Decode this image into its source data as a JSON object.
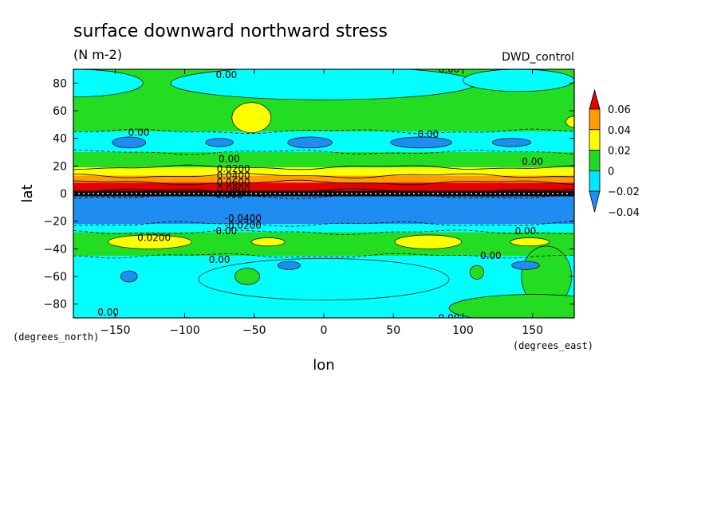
{
  "chart_data": {
    "type": "heatmap",
    "title": "surface downward northward stress",
    "units": "(N m-2)",
    "dataset": "DWD_control",
    "xlabel": "lon",
    "ylabel": "lat",
    "x_units_label": "(degrees_east)",
    "y_units_label": "(degrees_north)",
    "xlim": [
      -180,
      180
    ],
    "ylim": [
      -90,
      90
    ],
    "x_ticks": [
      -150,
      -100,
      -50,
      0,
      50,
      100,
      150
    ],
    "y_ticks": [
      -80,
      -60,
      -40,
      -20,
      0,
      20,
      40,
      60,
      80
    ],
    "x_tick_labels": [
      "−150",
      "−100",
      "−50",
      "0",
      "50",
      "100",
      "150"
    ],
    "y_tick_labels": [
      "−80",
      "−60",
      "−40",
      "−20",
      "0",
      "20",
      "40",
      "60",
      "80"
    ],
    "colorbar": {
      "levels": [
        -0.04,
        -0.02,
        0,
        0.02,
        0.04,
        0.06
      ],
      "level_labels": [
        "−0.04",
        "−0.02",
        "0",
        "0.02",
        "0.04",
        "0.06"
      ],
      "colors": [
        "#1e8cf0",
        "#00e6ff",
        "#20d820",
        "#ffff00",
        "#ff9c00",
        "#e60000"
      ],
      "extend": "both"
    },
    "zonal_bands": [
      {
        "lat_min": -90,
        "lat_max": -45,
        "color": "#00ffff"
      },
      {
        "lat_min": -45,
        "lat_max": -28,
        "color": "#22dd22"
      },
      {
        "lat_min": -28,
        "lat_max": -22,
        "color": "#00ffff"
      },
      {
        "lat_min": -22,
        "lat_max": -2,
        "color": "#1e8cf0"
      },
      {
        "lat_min": -2,
        "lat_max": 2,
        "color": "#000000"
      },
      {
        "lat_min": 2,
        "lat_max": 8,
        "color": "#e60000"
      },
      {
        "lat_min": 8,
        "lat_max": 13,
        "color": "#ff9c00"
      },
      {
        "lat_min": 13,
        "lat_max": 19,
        "color": "#ffff00"
      },
      {
        "lat_min": 19,
        "lat_max": 30,
        "color": "#22dd22"
      },
      {
        "lat_min": 30,
        "lat_max": 45,
        "color": "#00ffff"
      },
      {
        "lat_min": 45,
        "lat_max": 90,
        "color": "#22dd22"
      }
    ],
    "features": [
      {
        "lon": -180,
        "lat": 80,
        "rx": 50,
        "ry": 10,
        "color": "#00ffff"
      },
      {
        "lon": 0,
        "lat": 80,
        "rx": 110,
        "ry": 12,
        "color": "#00ffff"
      },
      {
        "lon": 140,
        "lat": 82,
        "rx": 40,
        "ry": 8,
        "color": "#00ffff"
      },
      {
        "lon": -52,
        "lat": 55,
        "rx": 14,
        "ry": 11,
        "color": "#ffff00"
      },
      {
        "lon": 180,
        "lat": 52,
        "rx": 6,
        "ry": 4,
        "color": "#ffff00"
      },
      {
        "lon": -140,
        "lat": 37,
        "rx": 12,
        "ry": 4,
        "color": "#1e8cf0"
      },
      {
        "lon": -75,
        "lat": 37,
        "rx": 10,
        "ry": 3,
        "color": "#1e8cf0"
      },
      {
        "lon": -10,
        "lat": 37,
        "rx": 16,
        "ry": 4,
        "color": "#1e8cf0"
      },
      {
        "lon": 70,
        "lat": 37,
        "rx": 22,
        "ry": 4,
        "color": "#1e8cf0"
      },
      {
        "lon": 135,
        "lat": 37,
        "rx": 14,
        "ry": 3,
        "color": "#1e8cf0"
      },
      {
        "lon": -125,
        "lat": -35,
        "rx": 30,
        "ry": 5,
        "color": "#ffff00"
      },
      {
        "lon": -40,
        "lat": -35,
        "rx": 12,
        "ry": 3,
        "color": "#ffff00"
      },
      {
        "lon": 75,
        "lat": -35,
        "rx": 24,
        "ry": 5,
        "color": "#ffff00"
      },
      {
        "lon": 148,
        "lat": -35,
        "rx": 14,
        "ry": 3,
        "color": "#ffff00"
      },
      {
        "lon": 0,
        "lat": -62,
        "rx": 90,
        "ry": 15,
        "color": "#00ffff"
      },
      {
        "lon": -55,
        "lat": -60,
        "rx": 9,
        "ry": 6,
        "color": "#22dd22"
      },
      {
        "lon": 110,
        "lat": -57,
        "rx": 5,
        "ry": 5,
        "color": "#22dd22"
      },
      {
        "lon": 160,
        "lat": -60,
        "rx": 18,
        "ry": 22,
        "color": "#22dd22"
      },
      {
        "lon": 150,
        "lat": -83,
        "rx": 60,
        "ry": 10,
        "color": "#22dd22"
      },
      {
        "lon": -140,
        "lat": -60,
        "rx": 6,
        "ry": 4,
        "color": "#1e8cf0"
      },
      {
        "lon": -25,
        "lat": -52,
        "rx": 8,
        "ry": 3,
        "color": "#1e8cf0"
      },
      {
        "lon": 145,
        "lat": -52,
        "rx": 10,
        "ry": 3,
        "color": "#1e8cf0"
      }
    ],
    "contour_labels": [
      {
        "lon": -70,
        "lat": 86,
        "text": "0.00"
      },
      {
        "lon": 90,
        "lat": 90,
        "text": "0.00"
      },
      {
        "lon": -133,
        "lat": 44,
        "text": "0.00"
      },
      {
        "lon": 75,
        "lat": 43,
        "text": "0.00"
      },
      {
        "lon": 150,
        "lat": 23,
        "text": "0.00"
      },
      {
        "lon": -68,
        "lat": 25,
        "text": "0.00"
      },
      {
        "lon": -65,
        "lat": 18,
        "text": "0.0200"
      },
      {
        "lon": -65,
        "lat": 13,
        "text": "0.0400"
      },
      {
        "lon": -65,
        "lat": 8,
        "text": "0.0600"
      },
      {
        "lon": -65,
        "lat": 3,
        "text": "0.0800"
      },
      {
        "lon": -68,
        "lat": -1,
        "text": "0.000"
      },
      {
        "lon": -58,
        "lat": -18,
        "text": "-0.0400"
      },
      {
        "lon": -58,
        "lat": -23,
        "text": "-0.0200"
      },
      {
        "lon": -70,
        "lat": -27,
        "text": "0.00"
      },
      {
        "lon": -122,
        "lat": -32,
        "text": "0.0200"
      },
      {
        "lon": 145,
        "lat": -27,
        "text": "0.00"
      },
      {
        "lon": 120,
        "lat": -45,
        "text": "0.00"
      },
      {
        "lon": -75,
        "lat": -48,
        "text": "0.00"
      },
      {
        "lon": -155,
        "lat": -86,
        "text": "0.00"
      },
      {
        "lon": 90,
        "lat": -90,
        "text": "0.00"
      }
    ]
  }
}
